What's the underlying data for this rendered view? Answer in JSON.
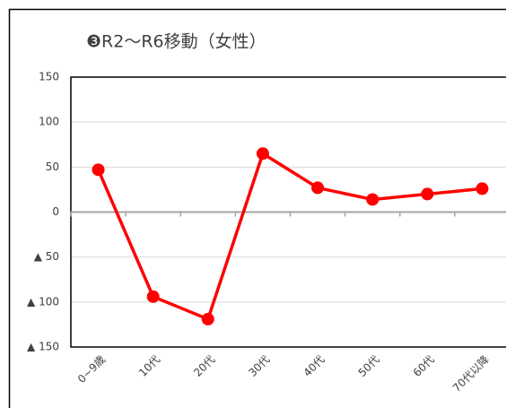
{
  "chart_data": {
    "type": "line",
    "title": "❸R2～R6移動（女性）",
    "categories": [
      "0~9歳",
      "10代",
      "20代",
      "30代",
      "40代",
      "50代",
      "60代",
      "70代以降"
    ],
    "series": [
      {
        "name": "女性",
        "color": "#ff0000",
        "values": [
          47,
          -94,
          -119,
          65,
          27,
          14,
          20,
          26
        ]
      }
    ],
    "ylim": [
      -150,
      150
    ],
    "yticks": [
      150,
      100,
      50,
      0,
      {
        "value": -50,
        "label": "▲ 50"
      },
      {
        "value": -100,
        "label": "▲ 100"
      },
      {
        "value": -150,
        "label": "▲ 150"
      }
    ],
    "grid": true
  }
}
